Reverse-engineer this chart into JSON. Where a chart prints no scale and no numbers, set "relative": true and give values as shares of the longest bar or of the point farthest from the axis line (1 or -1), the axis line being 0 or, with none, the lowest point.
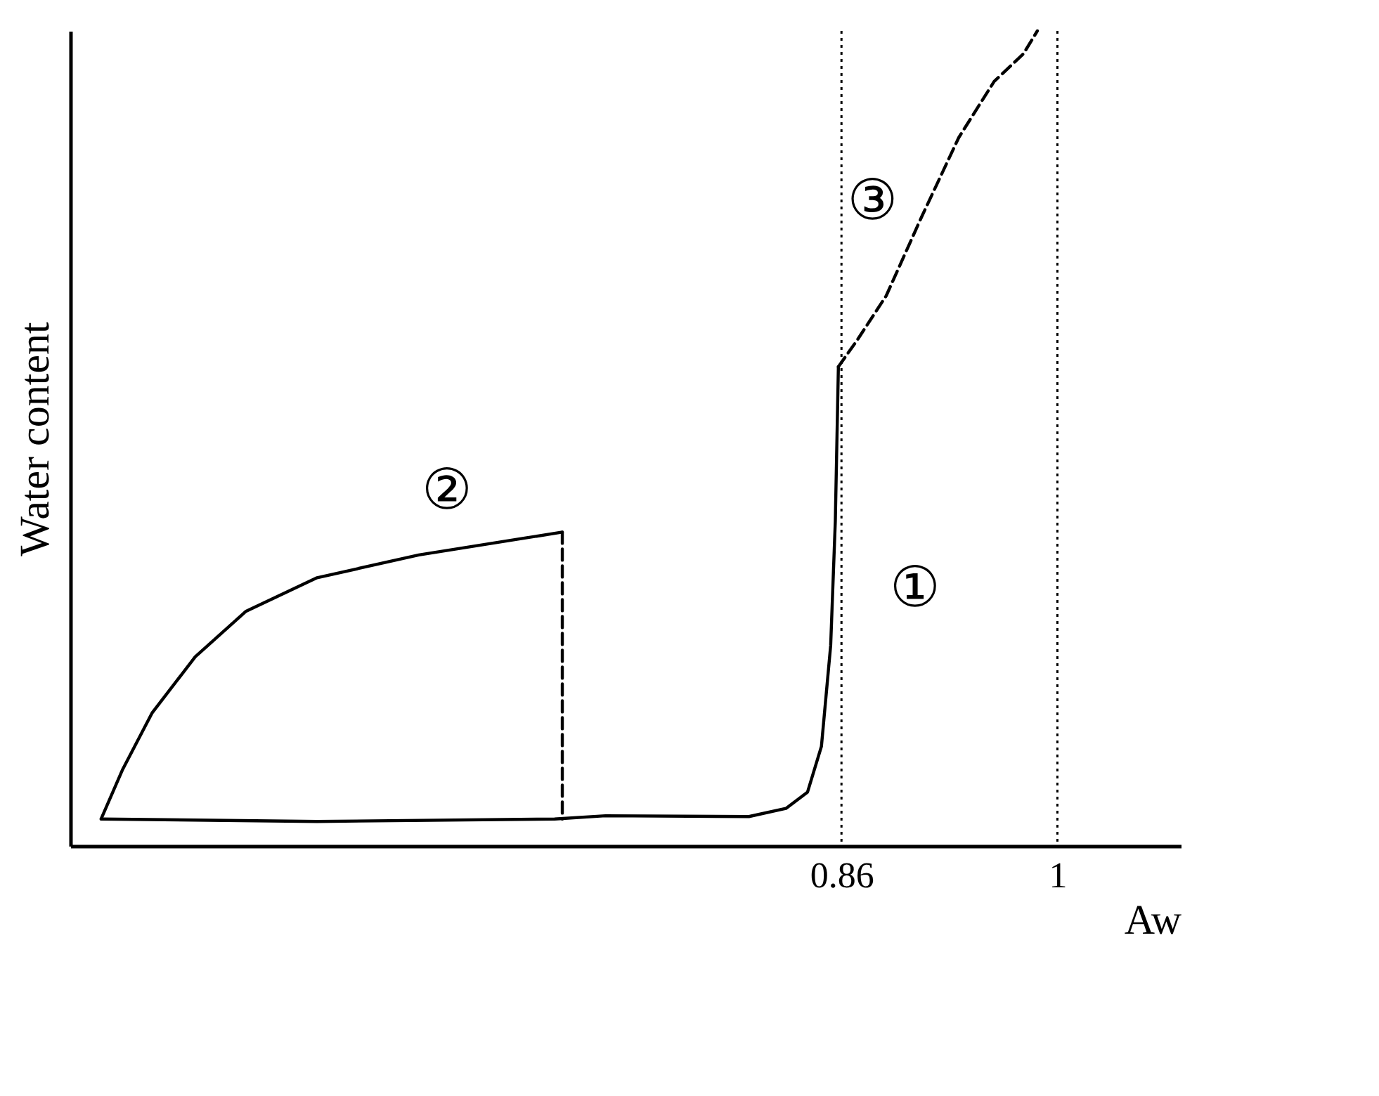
{
  "chart_data": {
    "type": "line",
    "relative": true,
    "xlabel": "Aw",
    "ylabel": "Water content",
    "xlim": [
      0.36,
      1.08
    ],
    "xticks": [
      0.86,
      1
    ],
    "tick_labels": "x",
    "grid": false,
    "marker": "none",
    "series": [
      {
        "color": "#000000",
        "line_style": "solid",
        "x": [
          0.38,
          0.52,
          0.674,
          0.707,
          0.8,
          0.824,
          0.838,
          0.847,
          0.853,
          0.856,
          0.858
        ],
        "values": [
          0.033,
          0.03,
          0.033,
          0.037,
          0.036,
          0.046,
          0.066,
          0.122,
          0.246,
          0.398,
          0.588
        ]
      },
      {
        "color": "#000000",
        "line_style": "solid",
        "x": [
          0.38,
          0.394,
          0.413,
          0.441,
          0.474,
          0.52,
          0.586,
          0.679
        ],
        "values": [
          0.033,
          0.094,
          0.163,
          0.232,
          0.288,
          0.329,
          0.357,
          0.385
        ]
      },
      {
        "color": "#000000",
        "line_style": "dashed",
        "x": [
          0.858,
          0.87,
          0.889,
          0.912,
          0.936,
          0.959,
          0.978,
          0.987
        ],
        "values": [
          0.588,
          0.62,
          0.675,
          0.772,
          0.869,
          0.938,
          0.972,
          1.0
        ]
      },
      {
        "color": "#000000",
        "line_style": "dashed",
        "x": [
          0.679,
          0.679
        ],
        "values": [
          0.385,
          0.033
        ]
      }
    ],
    "ref_lines": [
      {
        "axis": "x",
        "value": 0.86,
        "line_style": "dotted",
        "color": "#000000"
      },
      {
        "axis": "x",
        "value": 1,
        "line_style": "dotted",
        "color": "#000000"
      }
    ],
    "annotations": [
      {
        "text": "①",
        "x": 0.853,
        "y": 0.246
      },
      {
        "text": "②",
        "x": 0.586,
        "y": 0.357
      },
      {
        "text": "③",
        "x": 0.912,
        "y": 0.772
      }
    ]
  }
}
